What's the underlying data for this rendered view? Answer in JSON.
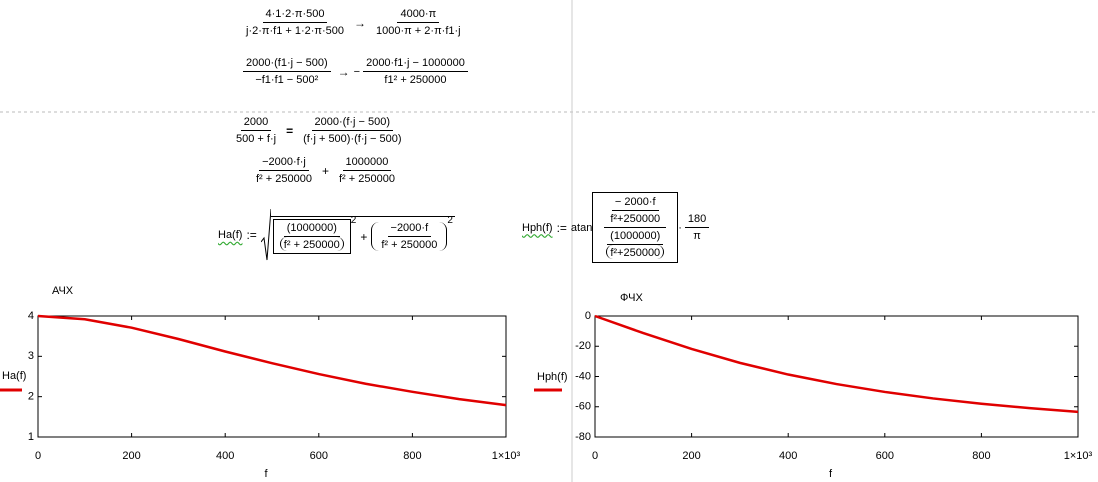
{
  "formulas": {
    "row1": {
      "num1": "4·1·2·π·500",
      "den1": "j·2·π·f1 + 1·2·π·500",
      "arrow": "→",
      "num2": "4000·π",
      "den2": "1000·π + 2·π·f1·j"
    },
    "row2": {
      "num1": "2000·(f1·j − 500)",
      "den1": "−f1·f1 − 500²",
      "arrow": "→",
      "sign": "−",
      "num2": "2000·f1·j − 1000000",
      "den2": "f1² + 250000"
    },
    "row3": {
      "num1": "2000",
      "den1": "500 + f·j",
      "equals": "=",
      "num2": "2000·(f·j − 500)",
      "den2": "(f·j + 500)·(f·j − 500)"
    },
    "row4": {
      "num1": "−2000·f·j",
      "den1": "f² + 250000",
      "plus": "+",
      "num2": "1000000",
      "den2": "f² + 250000"
    },
    "ha": {
      "name": "Ha(f)",
      "assign": ":=",
      "num1": "(1000000)",
      "den1": "f² + 250000",
      "exp1": "2",
      "plus": "+",
      "num2": "−2000·f",
      "den2": "f² + 250000",
      "exp2": "2"
    },
    "hph": {
      "name": "Hph(f)",
      "assign": ":=",
      "func": "atan",
      "num1": "− 2000·f",
      "den1": "f²+250000",
      "num2": "(1000000)",
      "den2": "f²+250000",
      "dot": "·",
      "num3": "180",
      "den3": "π"
    }
  },
  "chart_data": [
    {
      "type": "line",
      "title": "АЧХ",
      "x_label": "f",
      "x": [
        0,
        100,
        200,
        300,
        400,
        500,
        600,
        700,
        800,
        900,
        1000
      ],
      "series": [
        {
          "name": "Ha(f)",
          "color": "#e00000",
          "values": [
            4,
            3.92,
            3.71,
            3.43,
            3.12,
            2.83,
            2.56,
            2.32,
            2.12,
            1.94,
            1.79
          ]
        }
      ],
      "xlim": [
        0,
        1000
      ],
      "xticks": [
        0,
        200,
        400,
        600,
        800,
        {
          "value": 1000,
          "label": "1×10³"
        }
      ],
      "ylim": [
        1,
        4
      ],
      "yticks": [
        1,
        2,
        3,
        4
      ]
    },
    {
      "type": "line",
      "title": "ФЧХ",
      "x_label": "f",
      "x": [
        0,
        100,
        200,
        300,
        400,
        500,
        600,
        700,
        800,
        900,
        1000
      ],
      "series": [
        {
          "name": "Hph(f)",
          "color": "#e00000",
          "values": [
            0,
            -11.3,
            -21.8,
            -31.0,
            -38.7,
            -45.0,
            -50.2,
            -54.5,
            -58.0,
            -60.9,
            -63.4
          ]
        }
      ],
      "xlim": [
        0,
        1000
      ],
      "xticks": [
        0,
        200,
        400,
        600,
        800,
        {
          "value": 1000,
          "label": "1×10³"
        }
      ],
      "ylim": [
        -80,
        0
      ],
      "yticks": [
        0,
        -20,
        -40,
        -60,
        -80
      ]
    }
  ]
}
